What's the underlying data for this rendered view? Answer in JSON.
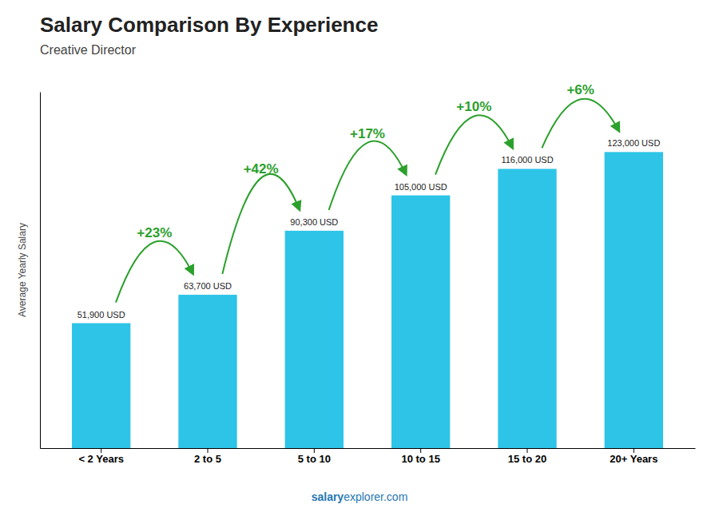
{
  "chart_data": {
    "type": "bar",
    "title": "Salary Comparison By Experience",
    "subtitle": "Creative Director",
    "categories": [
      "< 2 Years",
      "2 to 5",
      "5 to 10",
      "10 to 15",
      "15 to 20",
      "20+ Years"
    ],
    "values": [
      51900,
      63700,
      90300,
      105000,
      116000,
      123000
    ],
    "value_labels": [
      "51,900 USD",
      "63,700 USD",
      "90,300 USD",
      "105,000 USD",
      "116,000 USD",
      "123,000 USD"
    ],
    "data_labels": true,
    "annotations": [
      "+23%",
      "+42%",
      "+17%",
      "+10%",
      "+6%"
    ],
    "y_label": "Average Yearly Salary",
    "footer": [
      "salary",
      "explorer.com"
    ],
    "color": "#2ec4e8",
    "ylim": [
      0,
      148000
    ],
    "yticks": [],
    "tick_labels": "x",
    "grid": false
  }
}
